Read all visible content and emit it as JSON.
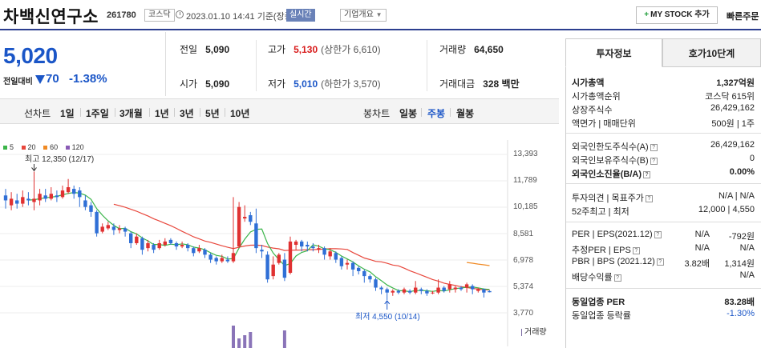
{
  "header": {
    "company_name": "차백신연구소",
    "stock_code": "261780",
    "market": "코스닥",
    "base_time": "2023.01.10 14:41 기준(장중)",
    "realtime": "실시간",
    "corp_info": "기업개요",
    "mystock_label": "MY STOCK 추가",
    "quick_order": "빠른주문"
  },
  "quote": {
    "price": "5,020",
    "change_label": "전일대비",
    "change": "70",
    "change_pct": "-1.38%",
    "prev_close_label": "전일",
    "prev_close": "5,090",
    "open_label": "시가",
    "open": "5,090",
    "high_label": "고가",
    "high": "5,130",
    "upper_limit": "(상한가 6,610)",
    "low_label": "저가",
    "low": "5,010",
    "lower_limit": "(하한가 3,570)",
    "volume_label": "거래량",
    "volume": "64,650",
    "amount_label": "거래대금",
    "amount": "328 백만"
  },
  "toolbar": {
    "line_chart": "선차트",
    "periods": [
      "1일",
      "1주일",
      "3개월",
      "1년",
      "3년",
      "5년",
      "10년"
    ],
    "candle_chart": "봉차트",
    "candle_periods": [
      "일봉",
      "주봉",
      "월봉"
    ],
    "active_candle": "주봉"
  },
  "chart_data": {
    "type": "candlestick",
    "legend": [
      {
        "name": "5",
        "color": "#3bb54a"
      },
      {
        "name": "20",
        "color": "#e8473c"
      },
      {
        "name": "60",
        "color": "#f08a24"
      },
      {
        "name": "120",
        "color": "#8a5bb5"
      }
    ],
    "yticks": [
      "13,393",
      "11,789",
      "10,185",
      "8,581",
      "6,978",
      "5,374",
      "3,770"
    ],
    "ylim": [
      3770,
      13393
    ],
    "high_note": "최고 12,350 (12/17)",
    "low_note": "최저 4,550 (10/14)",
    "volume_label": "거래량",
    "candles": [
      [
        10900,
        10600,
        11300,
        10100
      ],
      [
        10300,
        10700,
        11100,
        10000
      ],
      [
        10600,
        10400,
        11000,
        10100
      ],
      [
        10400,
        10800,
        11200,
        10200
      ],
      [
        10700,
        10600,
        11100,
        10300
      ],
      [
        10500,
        10700,
        12350,
        10000
      ],
      [
        10600,
        11000,
        11300,
        10300
      ],
      [
        10900,
        10700,
        11300,
        10500
      ],
      [
        10700,
        11000,
        11400,
        10600
      ],
      [
        10900,
        10800,
        11200,
        10500
      ],
      [
        10800,
        11200,
        11500,
        10700
      ],
      [
        11100,
        11400,
        11900,
        11000
      ],
      [
        11300,
        11000,
        11500,
        10700
      ],
      [
        11200,
        10800,
        11400,
        10200
      ],
      [
        10600,
        10200,
        10900,
        10000
      ],
      [
        10300,
        9900,
        10500,
        9600
      ],
      [
        9900,
        8600,
        10000,
        8400
      ],
      [
        8700,
        9000,
        9200,
        8600
      ],
      [
        8900,
        9100,
        9300,
        8800
      ],
      [
        9000,
        8800,
        9200,
        8500
      ],
      [
        8800,
        8900,
        9100,
        8600
      ],
      [
        8900,
        8700,
        9000,
        8400
      ],
      [
        8600,
        8000,
        8700,
        7700
      ],
      [
        8000,
        8400,
        8600,
        7900
      ],
      [
        8300,
        7600,
        8400,
        7300
      ],
      [
        7700,
        8000,
        8200,
        7500
      ],
      [
        7900,
        7600,
        8000,
        7400
      ],
      [
        7700,
        8000,
        8200,
        7600
      ],
      [
        7900,
        8100,
        8300,
        7800
      ],
      [
        8200,
        8000,
        8300,
        7900
      ],
      [
        8000,
        7800,
        8100,
        7600
      ],
      [
        7800,
        7900,
        8100,
        7700
      ],
      [
        7900,
        7700,
        8000,
        7500
      ],
      [
        7700,
        7400,
        7800,
        7200
      ],
      [
        7500,
        7700,
        7900,
        7400
      ],
      [
        7600,
        7300,
        7700,
        7100
      ],
      [
        7300,
        7000,
        7400,
        6800
      ],
      [
        7100,
        6900,
        7200,
        6700
      ],
      [
        6900,
        7100,
        7300,
        6800
      ],
      [
        7000,
        6900,
        7200,
        6800
      ],
      [
        6900,
        7400,
        10800,
        6800
      ],
      [
        7800,
        10200,
        10500,
        7700
      ],
      [
        9500,
        9600,
        10300,
        9300
      ],
      [
        9700,
        9300,
        9900,
        9100
      ],
      [
        9200,
        7700,
        10100,
        7400
      ],
      [
        7600,
        7500,
        7900,
        7100
      ],
      [
        7300,
        5800,
        7500,
        5600
      ],
      [
        6000,
        6700,
        7200,
        5800
      ],
      [
        6800,
        7300,
        7400,
        6700
      ],
      [
        7000,
        5900,
        7400,
        5700
      ],
      [
        6200,
        8100,
        8400,
        6100
      ],
      [
        7900,
        8100,
        8200,
        7600
      ],
      [
        8100,
        7800,
        8200,
        7500
      ],
      [
        7900,
        7800,
        8100,
        7500
      ],
      [
        7800,
        7700,
        8000,
        7500
      ],
      [
        7600,
        7700,
        7900,
        7400
      ],
      [
        7700,
        7300,
        7800,
        7000
      ],
      [
        7200,
        7500,
        7700,
        7000
      ],
      [
        7400,
        7000,
        7500,
        6800
      ],
      [
        7100,
        6600,
        7200,
        6400
      ],
      [
        6700,
        6800,
        7000,
        6400
      ],
      [
        6800,
        6400,
        6900,
        6000
      ],
      [
        6500,
        6300,
        6600,
        6100
      ],
      [
        6300,
        6000,
        6400,
        5600
      ],
      [
        6000,
        5800,
        6100,
        5600
      ],
      [
        5800,
        5300,
        5900,
        5100
      ],
      [
        5300,
        5200,
        5400,
        4900
      ],
      [
        5200,
        5000,
        5300,
        4550
      ],
      [
        5000,
        5100,
        5200,
        4800
      ],
      [
        5100,
        5000,
        5200,
        4900
      ],
      [
        5000,
        5200,
        5300,
        4900
      ],
      [
        5100,
        5000,
        5200,
        4900
      ],
      [
        5000,
        5300,
        5700,
        4900
      ],
      [
        5200,
        5100,
        5300,
        4900
      ],
      [
        5100,
        4950,
        5200,
        4800
      ],
      [
        4950,
        5000,
        5100,
        4900
      ],
      [
        5000,
        5300,
        5800,
        4900
      ],
      [
        5300,
        5100,
        5400,
        5000
      ],
      [
        5200,
        5500,
        5700,
        5000
      ],
      [
        5200,
        5300,
        5400,
        5000
      ],
      [
        5300,
        5200,
        5400,
        5100
      ],
      [
        5300,
        5500,
        5600,
        5000
      ],
      [
        5400,
        5200,
        5500,
        4900
      ],
      [
        5100,
        5200,
        5300,
        5000
      ],
      [
        5200,
        5000,
        5250,
        4700
      ],
      [
        5090,
        5020,
        5130,
        5010
      ]
    ]
  },
  "panel": {
    "tab_active": "투자정보",
    "tab_other": "호가10단계",
    "rows": [
      {
        "k": "시가총액",
        "v": "1,327억원",
        "bold": true
      },
      {
        "k": "시가총액순위",
        "v": "코스닥 615위"
      },
      {
        "k": "상장주식수",
        "v": "26,429,162"
      },
      {
        "k": "액면가 | 매매단위",
        "v": "500원 | 1주"
      },
      {
        "k": "외국인한도주식수(A)",
        "v": "26,429,162"
      },
      {
        "k": "외국인보유주식수(B)",
        "v": "0"
      },
      {
        "k": "외국인소진율(B/A)",
        "v": "0.00%",
        "bold": true
      },
      {
        "k": "투자의견 | 목표주가",
        "v": "N/A | N/A"
      },
      {
        "k": "52주최고 | 최저",
        "v": "12,000 | 4,550"
      },
      {
        "k": "PER | EPS(2021.12)",
        "v1": "N/A",
        "v": "-792원"
      },
      {
        "k": "추정PER | EPS",
        "v1": "N/A",
        "v": "N/A"
      },
      {
        "k": "PBR | BPS (2021.12)",
        "v1": "3.82배",
        "v": "1,314원"
      },
      {
        "k": "배당수익률",
        "v": "N/A"
      },
      {
        "k": "동일업종 PER",
        "v": "83.28배",
        "bold": true
      },
      {
        "k": "동일업종 등락률",
        "v": "-1.30%",
        "blue": true
      }
    ]
  }
}
